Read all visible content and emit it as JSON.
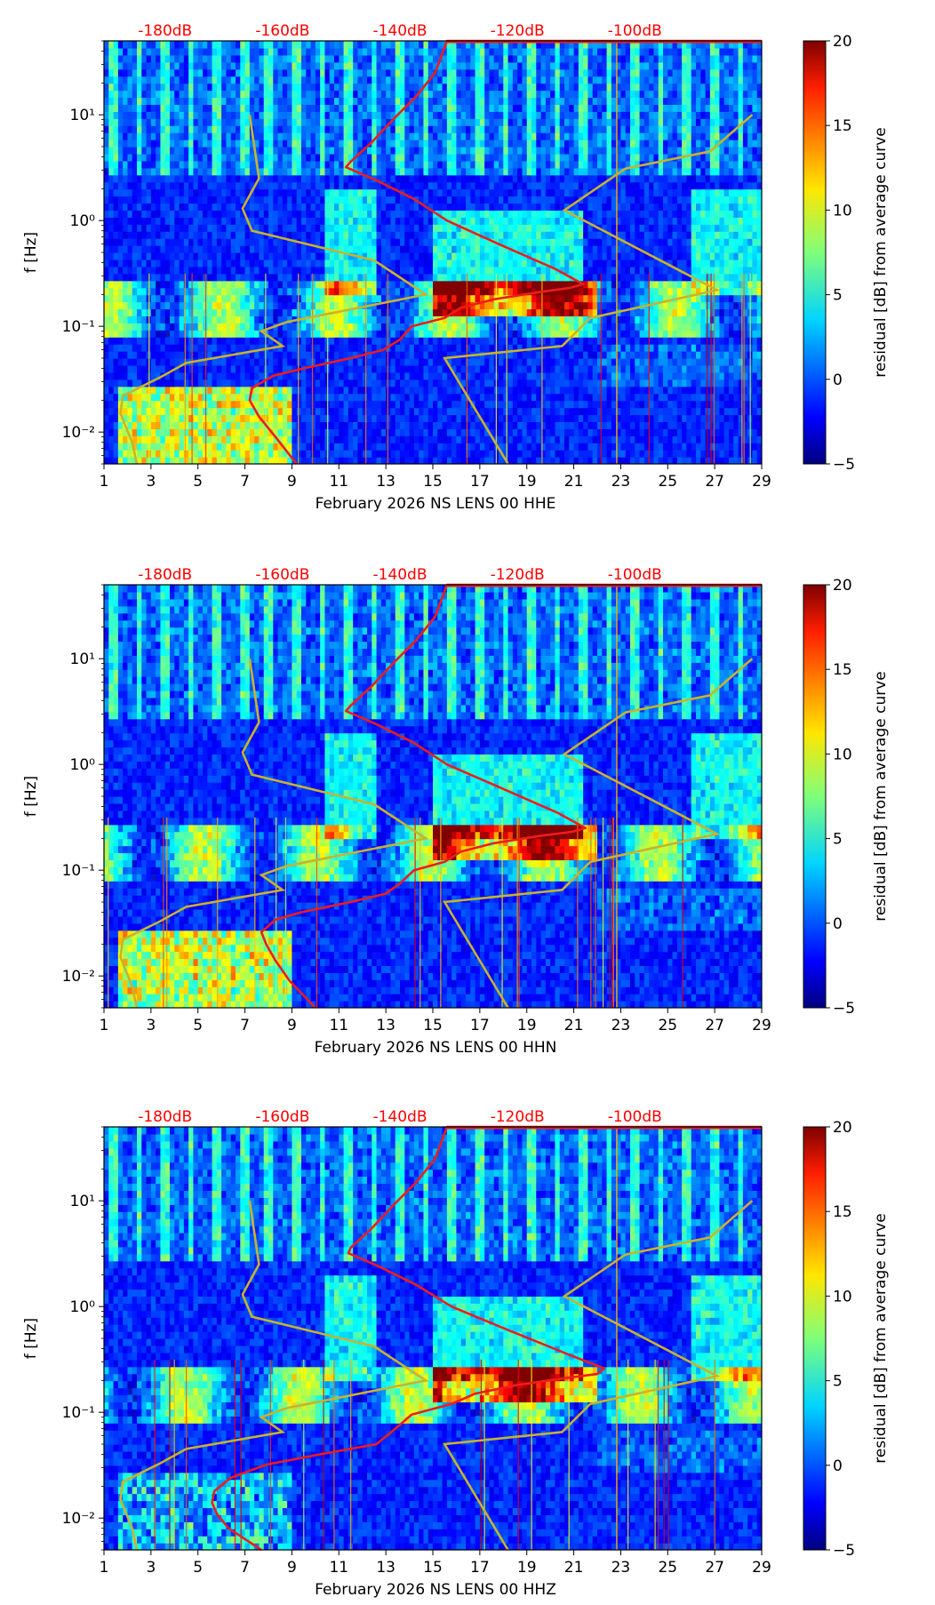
{
  "figure": {
    "month_label": "February 2026",
    "colors": {
      "psd_curve": "#ee1c1c",
      "noise_model": "#c9b22e",
      "top_db_labels": "#ff0000",
      "axis": "#000000"
    }
  },
  "chart_data": [
    {
      "type": "heatmap",
      "channel": "NS LENS 00 HHE",
      "xlabel": "February 2026 NS LENS 00 HHE",
      "ylabel": "f [Hz]",
      "colorbar_label": "residual [dB] from average curve",
      "x_range": [
        1,
        29
      ],
      "y_range_hz": [
        0.005,
        50
      ],
      "y_scale": "log",
      "x_ticks": [
        "1",
        "3",
        "5",
        "7",
        "9",
        "11",
        "13",
        "15",
        "17",
        "19",
        "21",
        "23",
        "25",
        "27",
        "29"
      ],
      "y_ticks": [
        "10⁻²",
        "10⁻¹",
        "10⁰",
        "10¹"
      ],
      "colorbar_range": [
        -5,
        20
      ],
      "colorbar_ticks": [
        "−5",
        "0",
        "5",
        "10",
        "15",
        "20"
      ],
      "top_axis_db": [
        "-180dB",
        "-160dB",
        "-140dB",
        "-120dB",
        "-100dB"
      ],
      "psd_curve": {
        "name": "average PSD",
        "x": [
          9.2,
          8.3,
          7.6,
          7.2,
          7.3,
          8.2,
          9.5,
          11.5,
          12.9,
          13.6,
          14.1,
          15.5,
          16.2,
          17.6,
          19.5,
          20.8,
          21.4,
          20.2,
          17.8,
          15.6,
          14.2,
          12.6,
          11.3,
          11.5,
          12.4,
          13.3,
          14.3,
          15.1,
          15.6,
          29
        ],
        "f": [
          0.005,
          0.009,
          0.014,
          0.02,
          0.026,
          0.034,
          0.04,
          0.05,
          0.06,
          0.075,
          0.1,
          0.12,
          0.15,
          0.18,
          0.21,
          0.23,
          0.25,
          0.35,
          0.6,
          1.0,
          1.6,
          2.4,
          3.2,
          3.6,
          5.5,
          9,
          15,
          25,
          50,
          50
        ]
      },
      "noise_models": [
        {
          "name": "low noise model",
          "x": [
            2.4,
            2.2,
            1.7,
            1.8,
            3.4,
            4.5,
            8.6,
            7.7,
            8.8,
            14.7,
            12.5,
            7.3,
            6.9,
            7.6,
            7.2
          ],
          "f": [
            0.005,
            0.008,
            0.015,
            0.022,
            0.033,
            0.045,
            0.065,
            0.09,
            0.11,
            0.2,
            0.42,
            0.8,
            1.3,
            2.5,
            10
          ]
        },
        {
          "name": "high noise model",
          "x": [
            18.2,
            15.5,
            20.5,
            21.7,
            27.1,
            20.6,
            23.2,
            26.8,
            28.6
          ],
          "f": [
            0.005,
            0.05,
            0.065,
            0.12,
            0.22,
            1.25,
            3.1,
            4.5,
            10
          ]
        }
      ]
    },
    {
      "type": "heatmap",
      "channel": "NS LENS 00 HHN",
      "xlabel": "February 2026 NS LENS 00 HHN",
      "ylabel": "f [Hz]",
      "colorbar_label": "residual [dB] from average curve",
      "x_range": [
        1,
        29
      ],
      "y_range_hz": [
        0.005,
        50
      ],
      "y_scale": "log",
      "x_ticks": [
        "1",
        "3",
        "5",
        "7",
        "9",
        "11",
        "13",
        "15",
        "17",
        "19",
        "21",
        "23",
        "25",
        "27",
        "29"
      ],
      "y_ticks": [
        "10⁻²",
        "10⁻¹",
        "10⁰",
        "10¹"
      ],
      "colorbar_range": [
        -5,
        20
      ],
      "colorbar_ticks": [
        "−5",
        "0",
        "5",
        "10",
        "15",
        "20"
      ],
      "top_axis_db": [
        "-180dB",
        "-160dB",
        "-140dB",
        "-120dB",
        "-100dB"
      ],
      "psd_curve": {
        "name": "average PSD",
        "x": [
          10.0,
          8.9,
          8.3,
          7.9,
          7.7,
          8.3,
          9.4,
          11.5,
          13.0,
          13.6,
          14.2,
          15.5,
          16.2,
          17.6,
          19.5,
          20.9,
          21.5,
          20.3,
          17.9,
          15.6,
          14.2,
          12.6,
          11.3,
          11.5,
          12.4,
          13.3,
          14.3,
          15.1,
          15.6,
          29
        ],
        "f": [
          0.005,
          0.009,
          0.014,
          0.02,
          0.026,
          0.034,
          0.04,
          0.05,
          0.06,
          0.075,
          0.1,
          0.12,
          0.15,
          0.18,
          0.21,
          0.23,
          0.25,
          0.35,
          0.6,
          1.0,
          1.6,
          2.4,
          3.2,
          3.6,
          5.5,
          9,
          15,
          25,
          50,
          50
        ]
      },
      "noise_models": [
        {
          "name": "low noise model",
          "x": [
            2.4,
            2.2,
            1.7,
            1.8,
            3.4,
            4.5,
            8.6,
            7.7,
            8.8,
            14.7,
            12.5,
            7.3,
            6.9,
            7.6,
            7.2
          ],
          "f": [
            0.005,
            0.008,
            0.015,
            0.022,
            0.033,
            0.045,
            0.065,
            0.09,
            0.11,
            0.2,
            0.42,
            0.8,
            1.3,
            2.5,
            10
          ]
        },
        {
          "name": "high noise model",
          "x": [
            18.2,
            15.5,
            20.5,
            21.7,
            27.1,
            20.6,
            23.2,
            26.8,
            28.6
          ],
          "f": [
            0.005,
            0.05,
            0.065,
            0.12,
            0.22,
            1.25,
            3.1,
            4.5,
            10
          ]
        }
      ]
    },
    {
      "type": "heatmap",
      "channel": "NS LENS 00 HHZ",
      "xlabel": "February 2026 NS LENS 00 HHZ",
      "ylabel": "f [Hz]",
      "colorbar_label": "residual [dB] from average curve",
      "x_range": [
        1,
        29
      ],
      "y_range_hz": [
        0.005,
        50
      ],
      "y_scale": "log",
      "x_ticks": [
        "1",
        "3",
        "5",
        "7",
        "9",
        "11",
        "13",
        "15",
        "17",
        "19",
        "21",
        "23",
        "25",
        "27",
        "29"
      ],
      "y_ticks": [
        "10⁻²",
        "10⁻¹",
        "10⁰",
        "10¹"
      ],
      "colorbar_range": [
        -5,
        20
      ],
      "colorbar_ticks": [
        "−5",
        "0",
        "5",
        "10",
        "15",
        "20"
      ],
      "top_axis_db": [
        "-180dB",
        "-160dB",
        "-140dB",
        "-120dB",
        "-100dB"
      ],
      "psd_curve": {
        "name": "average PSD",
        "x": [
          7.7,
          6.3,
          5.8,
          5.6,
          5.7,
          6.4,
          7.9,
          10.2,
          12.6,
          13.4,
          14.1,
          15.8,
          16.8,
          18.5,
          20.6,
          22.0,
          22.3,
          20.8,
          18.2,
          15.8,
          14.3,
          12.7,
          11.4,
          11.5,
          12.4,
          13.3,
          14.3,
          15.1,
          15.6,
          29
        ],
        "f": [
          0.005,
          0.008,
          0.011,
          0.014,
          0.018,
          0.024,
          0.032,
          0.04,
          0.05,
          0.07,
          0.095,
          0.12,
          0.15,
          0.18,
          0.21,
          0.23,
          0.26,
          0.35,
          0.6,
          1.0,
          1.6,
          2.4,
          3.2,
          3.6,
          5.5,
          9,
          15,
          25,
          50,
          50
        ]
      },
      "noise_models": [
        {
          "name": "low noise model",
          "x": [
            2.4,
            2.2,
            1.7,
            1.8,
            3.4,
            4.5,
            8.6,
            7.7,
            8.8,
            14.7,
            12.5,
            7.3,
            6.9,
            7.6,
            7.2
          ],
          "f": [
            0.005,
            0.008,
            0.015,
            0.022,
            0.033,
            0.045,
            0.065,
            0.09,
            0.11,
            0.2,
            0.42,
            0.8,
            1.3,
            2.5,
            10
          ]
        },
        {
          "name": "high noise model",
          "x": [
            18.2,
            15.5,
            20.5,
            21.7,
            27.1,
            20.6,
            23.2,
            26.8,
            28.6
          ],
          "f": [
            0.005,
            0.05,
            0.065,
            0.12,
            0.22,
            1.25,
            3.1,
            4.5,
            10
          ]
        }
      ]
    }
  ]
}
